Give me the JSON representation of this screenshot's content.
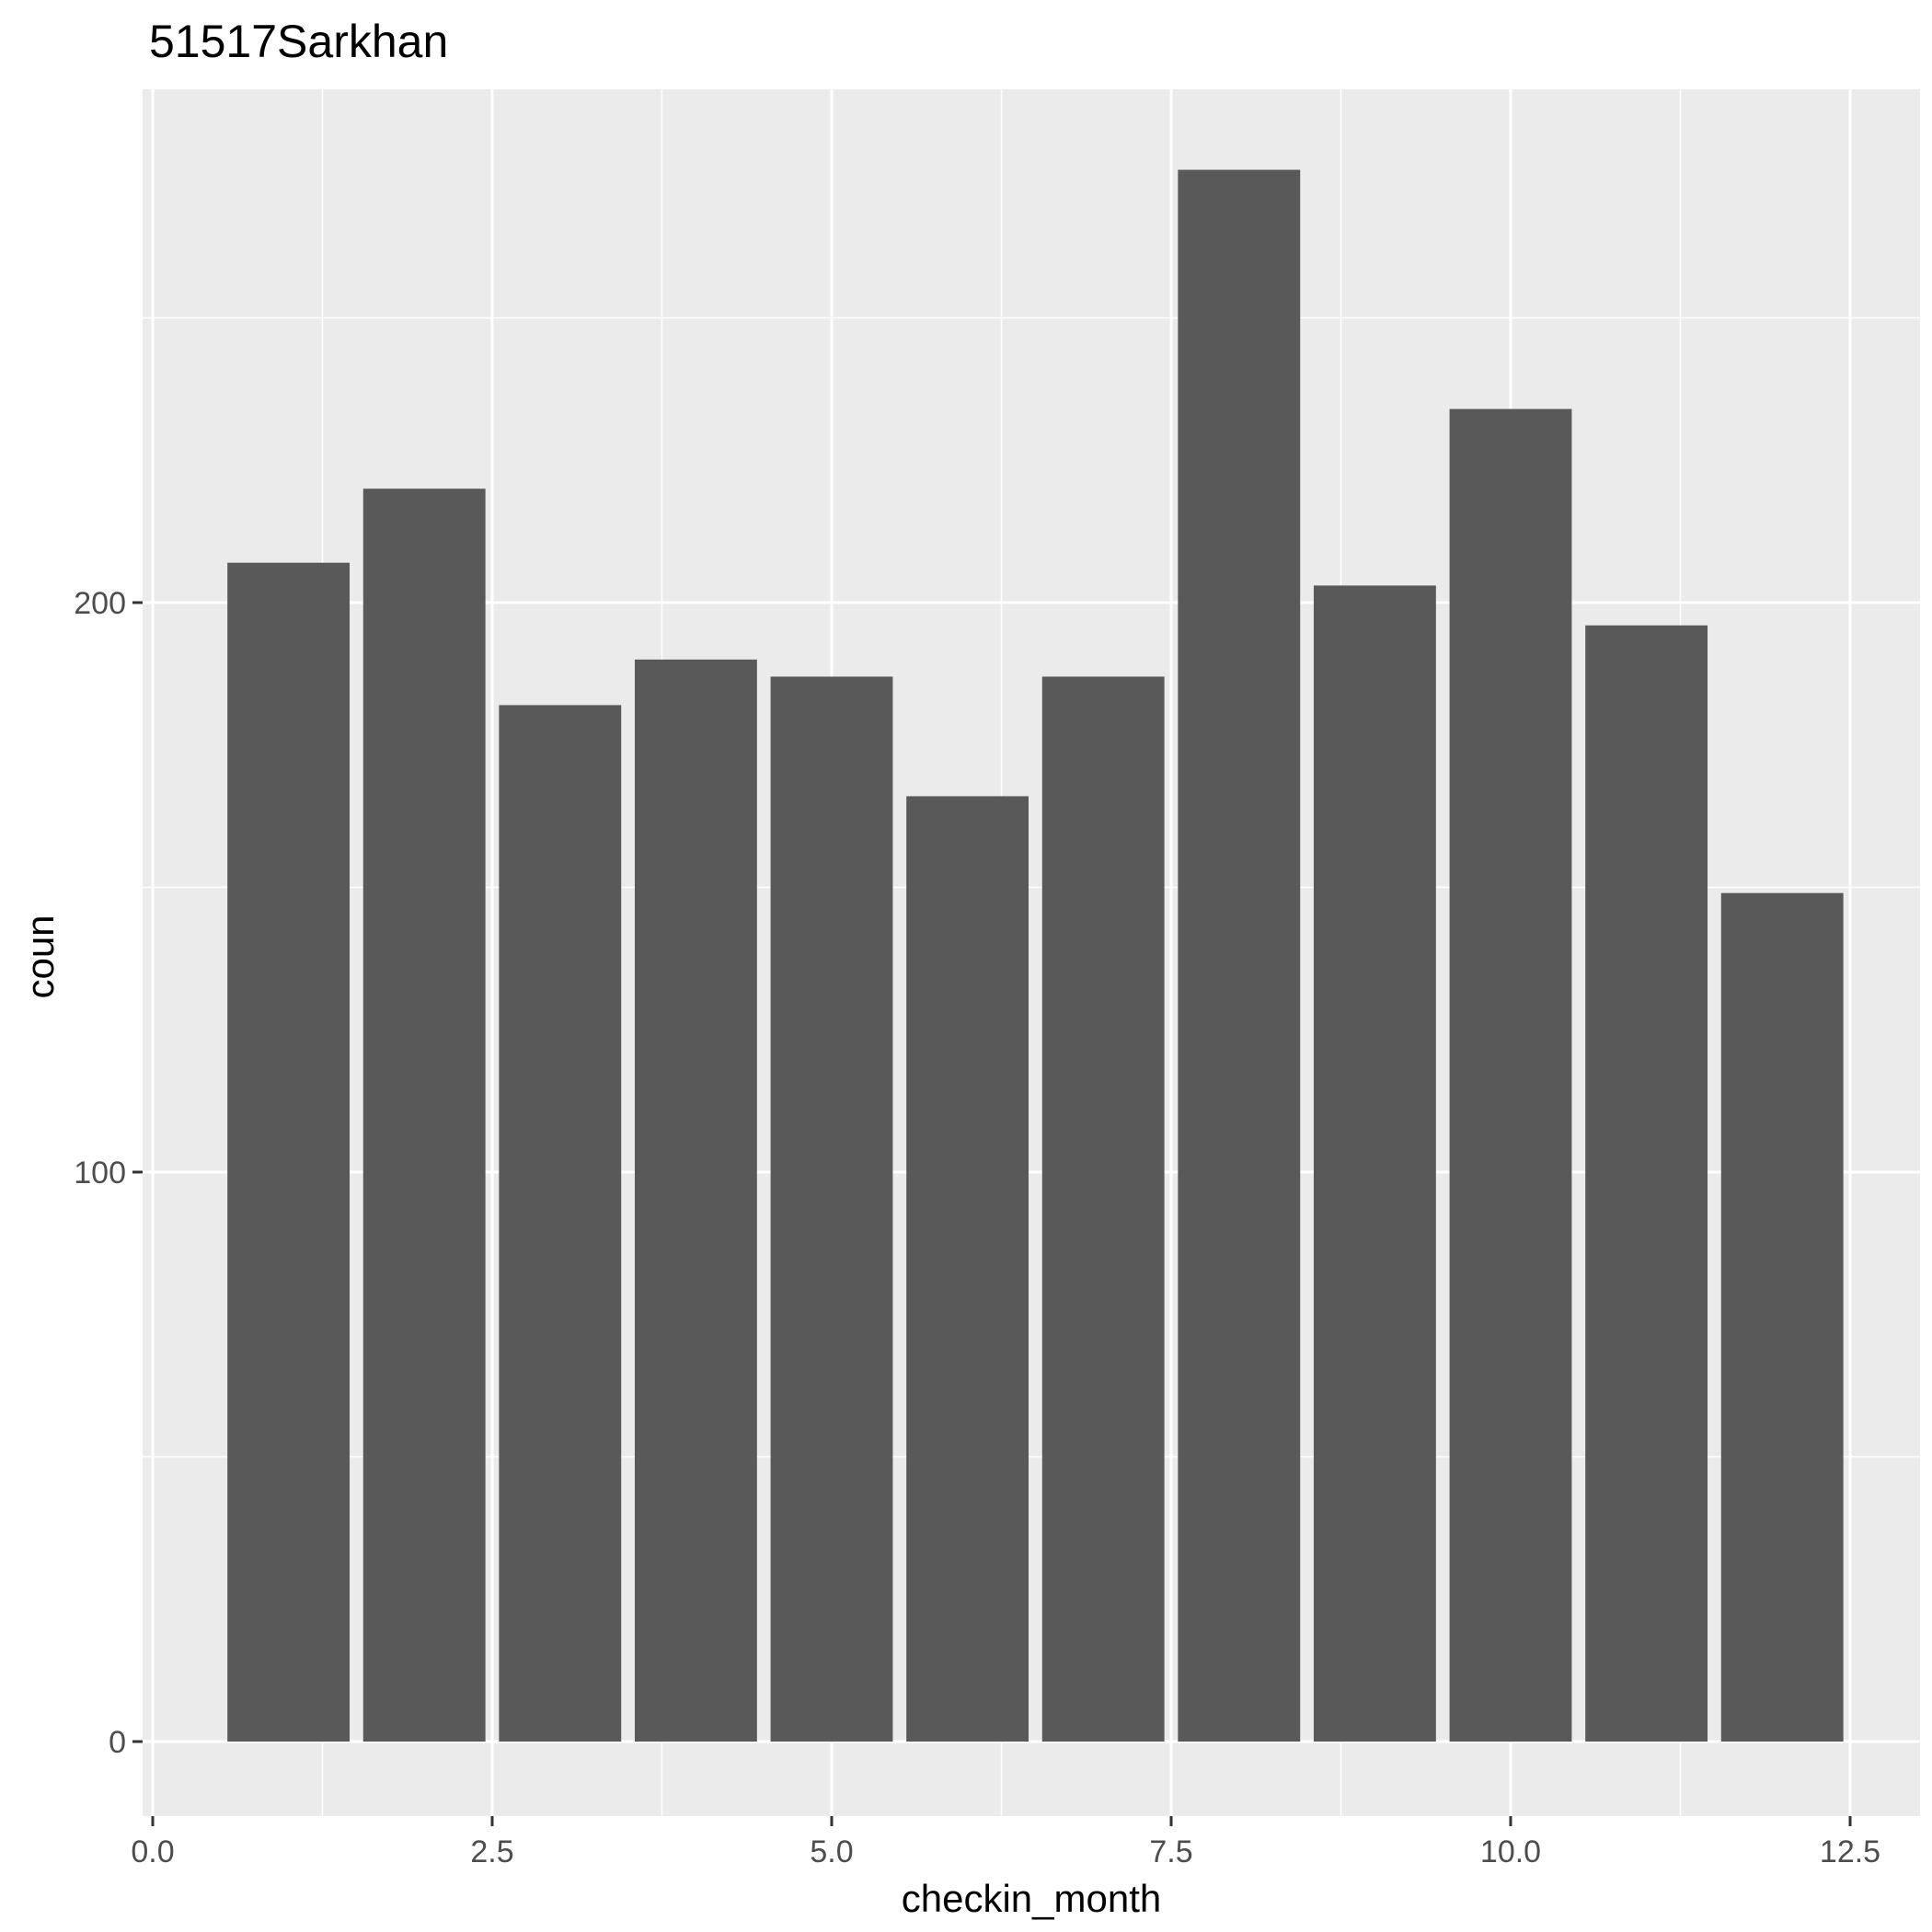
{
  "chart_data": {
    "type": "bar",
    "title": "51517Sarkhan",
    "xlabel": "checkin_month",
    "ylabel": "coun",
    "x": [
      1,
      2,
      3,
      4,
      5,
      6,
      7,
      8,
      9,
      10,
      11,
      12
    ],
    "values": [
      207,
      220,
      182,
      190,
      187,
      166,
      187,
      276,
      203,
      234,
      196,
      149
    ],
    "xlim": [
      0.0,
      12.5
    ],
    "ylim": [
      0,
      300
    ],
    "x_ticks": [
      "0.0",
      "2.5",
      "5.0",
      "7.5",
      "10.0",
      "12.5"
    ],
    "y_ticks": [
      "0",
      "100",
      "200"
    ],
    "grid": true,
    "colors": {
      "bar": "#595959",
      "panel": "#ebebeb",
      "grid": "#ffffff",
      "tick_text": "#4d4d4d",
      "tick_mark": "#333333"
    }
  }
}
